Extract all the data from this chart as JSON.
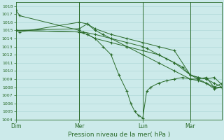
{
  "xlabel": "Pression niveau de la mer( hPa )",
  "ylim": [
    1004,
    1018.5
  ],
  "ytick_min": 1004,
  "ytick_max": 1018,
  "bg_color": "#cceaea",
  "grid_color": "#b0d8d8",
  "line_color": "#2a6b2a",
  "xtick_labels": [
    "Dim",
    "Mer",
    "Lun",
    "Mar"
  ],
  "xtick_positions": [
    0,
    16,
    32,
    44
  ],
  "xlim": [
    0,
    52
  ],
  "vline_positions": [
    16,
    32,
    44
  ],
  "series": [
    {
      "x": [
        0,
        1,
        16,
        17,
        20,
        24,
        28,
        32,
        33,
        36,
        38,
        40,
        42,
        44,
        46,
        48,
        50,
        52
      ],
      "y": [
        1017.5,
        1016.8,
        1015.0,
        1014.8,
        1014.5,
        1014.0,
        1013.5,
        1013.0,
        1012.8,
        1012.0,
        1011.5,
        1011.0,
        1010.5,
        1009.5,
        1009.2,
        1009.0,
        1008.5,
        1008.0
      ]
    },
    {
      "x": [
        0,
        1,
        16,
        18,
        20,
        24,
        28,
        32,
        36,
        40,
        44,
        46,
        48,
        50,
        52
      ],
      "y": [
        1015.0,
        1014.8,
        1016.0,
        1015.8,
        1015.2,
        1014.5,
        1014.0,
        1013.5,
        1013.0,
        1012.5,
        1009.5,
        1009.2,
        1009.0,
        1009.2,
        1008.3
      ]
    },
    {
      "x": [
        0,
        16,
        18,
        20,
        22,
        24,
        26,
        28,
        29,
        30,
        31,
        32,
        33,
        34,
        36,
        38,
        40,
        42,
        44,
        46,
        48,
        50,
        52
      ],
      "y": [
        1015.0,
        1014.8,
        1014.5,
        1014.0,
        1013.0,
        1012.0,
        1009.5,
        1007.5,
        1006.0,
        1005.0,
        1004.5,
        1004.2,
        1007.5,
        1008.0,
        1008.5,
        1008.8,
        1009.0,
        1009.2,
        1009.0,
        1009.0,
        1009.2,
        1008.0,
        1008.5
      ]
    },
    {
      "x": [
        0,
        16,
        18,
        20,
        22,
        24,
        28,
        32,
        36,
        40,
        44,
        46,
        48,
        50,
        52
      ],
      "y": [
        1015.0,
        1015.2,
        1015.8,
        1015.0,
        1014.5,
        1014.0,
        1013.0,
        1012.5,
        1012.0,
        1011.0,
        1009.5,
        1009.0,
        1008.5,
        1007.8,
        1008.0
      ]
    },
    {
      "x": [
        0,
        16,
        18,
        20,
        24,
        28,
        32,
        36,
        40,
        44,
        46,
        48,
        50,
        52
      ],
      "y": [
        1015.0,
        1014.8,
        1014.5,
        1014.0,
        1013.5,
        1013.0,
        1012.0,
        1011.0,
        1010.0,
        1009.0,
        1008.8,
        1008.5,
        1008.0,
        1008.0
      ]
    }
  ]
}
